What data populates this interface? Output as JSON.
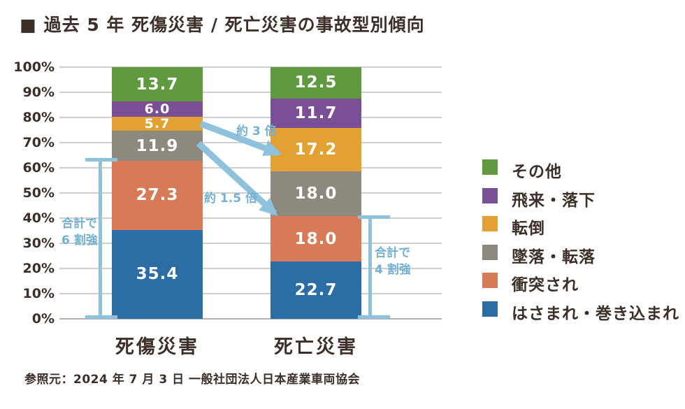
{
  "title": {
    "marker": "■",
    "text": "過去 5 年 死傷災害 / 死亡災害の事故型別傾向"
  },
  "source": "参照元：2024 年 7 月 3 日 一般社団法人日本産業車両協会",
  "chart_data": {
    "type": "bar",
    "subtype": "stacked-percent-column",
    "title": "過去 5 年 死傷災害 / 死亡災害の事故型別傾向",
    "categories": [
      "死傷災害",
      "死亡災害"
    ],
    "series": [
      {
        "name": "はさまれ・巻き込まれ",
        "color": "#2c6da6",
        "values": [
          35.4,
          22.7
        ],
        "labels": [
          "35.4",
          "22.7"
        ]
      },
      {
        "name": "衝突され",
        "color": "#d67a57",
        "values": [
          27.3,
          18.0
        ],
        "labels": [
          "27.3",
          "18.0"
        ]
      },
      {
        "name": "墜落・転落",
        "color": "#8e897f",
        "values": [
          11.9,
          18.0
        ],
        "labels": [
          "11.9",
          "18.0"
        ]
      },
      {
        "name": "転倒",
        "color": "#e2a132",
        "values": [
          5.7,
          17.2
        ],
        "labels": [
          "5.7",
          "17.2"
        ]
      },
      {
        "name": "飛来・落下",
        "color": "#7b4f96",
        "values": [
          6.0,
          11.7
        ],
        "labels": [
          "6.0",
          "11.7"
        ]
      },
      {
        "name": "その他",
        "color": "#5f9a41",
        "values": [
          13.7,
          12.5
        ],
        "labels": [
          "13.7",
          "12.5"
        ]
      }
    ],
    "y_ticks": [
      {
        "label": "100%",
        "value": 100
      },
      {
        "label": "90%",
        "value": 90
      },
      {
        "label": "80%",
        "value": 80
      },
      {
        "label": "70%",
        "value": 70
      },
      {
        "label": "60%",
        "value": 60
      },
      {
        "label": "50%",
        "value": 50
      },
      {
        "label": "40%",
        "value": 40
      },
      {
        "label": "30%",
        "value": 30
      },
      {
        "label": "20%",
        "value": 20
      },
      {
        "label": "10%",
        "value": 10
      },
      {
        "label": "0%",
        "value": 0
      }
    ],
    "ylim": [
      0,
      100
    ],
    "grid": true,
    "legend_position": "right",
    "legend_top_to_bottom": [
      "その他",
      "飛来・落下",
      "転倒",
      "墜落・転落",
      "衝突され",
      "はさまれ・巻き込まれ"
    ],
    "annotations": {
      "arrows": [
        {
          "label": "約 3 倍",
          "from_category": "死傷災害",
          "to_category": "死亡災害",
          "series": "転倒"
        },
        {
          "label": "約 1.5 倍",
          "from_category": "死傷災害",
          "to_category": "死亡災害",
          "series": "墜落・転落"
        }
      ],
      "brackets": [
        {
          "label_lines": [
            "合計で",
            "6 割強"
          ],
          "category": "死傷災害",
          "span_percent": [
            0,
            62.7
          ],
          "side": "left"
        },
        {
          "label_lines": [
            "合計で",
            "4 割強"
          ],
          "category": "死亡災害",
          "span_percent": [
            0,
            40.7
          ],
          "side": "right"
        }
      ]
    },
    "colors": {
      "annotation": "#8ec2dc",
      "annotation_text": "#74b0d2",
      "grid": "#cfcfcf",
      "axis_text": "#3d2f28",
      "value_label": "#ffffff"
    }
  }
}
